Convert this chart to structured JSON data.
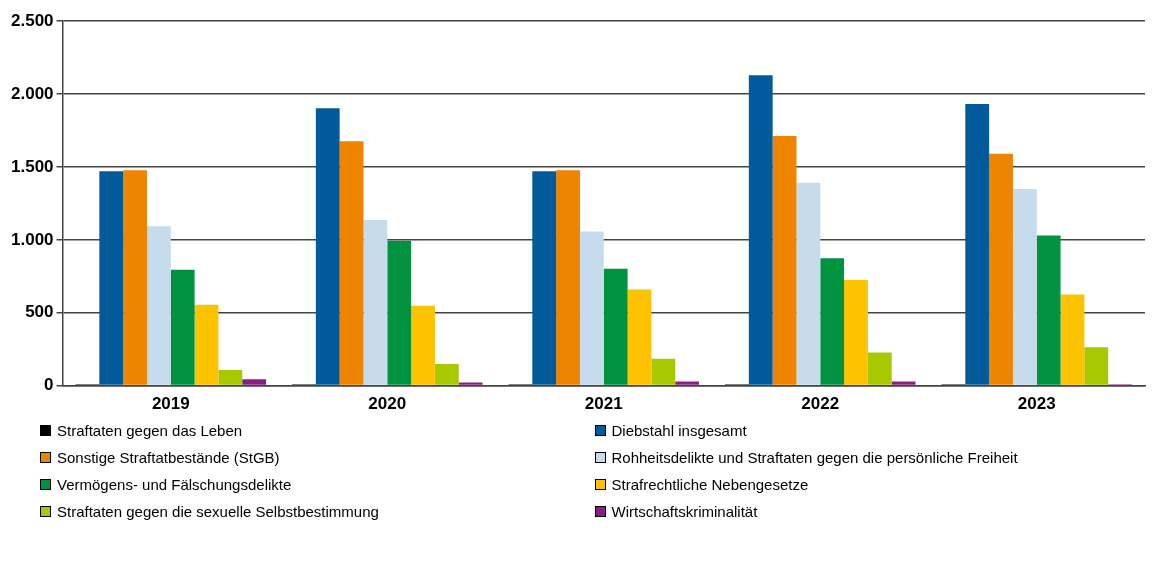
{
  "chart_data": {
    "type": "bar",
    "categories": [
      "2019",
      "2020",
      "2021",
      "2022",
      "2023"
    ],
    "series": [
      {
        "name": "Straftaten gegen das Leben",
        "color": "#000000",
        "values": [
          10,
          10,
          10,
          10,
          10
        ]
      },
      {
        "name": "Diebstahl insgesamt",
        "color": "#005a9c",
        "values": [
          1470,
          1903,
          1470,
          2130,
          1932
        ]
      },
      {
        "name": "Sonstige Straftatbestände (StGB)",
        "color": "#ee8400",
        "values": [
          1477,
          1676,
          1477,
          1712,
          1591
        ]
      },
      {
        "name": "Rohheitsdelikte und Straftaten gegen die persönliche Freiheit",
        "color": "#c6dcec",
        "values": [
          1094,
          1136,
          1058,
          1392,
          1349
        ]
      },
      {
        "name": "Vermögens- und Fälschungsdelikte",
        "color": "#00923f",
        "values": [
          795,
          994,
          802,
          873,
          1030
        ]
      },
      {
        "name": "Strafrechtliche Nebengesetze",
        "color": "#fdc300",
        "values": [
          554,
          547,
          660,
          724,
          625
        ]
      },
      {
        "name": "Straftaten gegen die sexuelle Selbstbestimmung",
        "color": "#a8c800",
        "values": [
          107,
          149,
          185,
          227,
          263
        ]
      },
      {
        "name": "Wirtschaftskriminalität",
        "color": "#8b1e82",
        "values": [
          43,
          21,
          28,
          28,
          10
        ]
      }
    ],
    "ylim": [
      0,
      2500
    ],
    "yticks": [
      {
        "value": 0,
        "label": "0"
      },
      {
        "value": 500,
        "label": "500"
      },
      {
        "value": 1000,
        "label": "1.000"
      },
      {
        "value": 1500,
        "label": "1.500"
      },
      {
        "value": 2000,
        "label": "2.000"
      },
      {
        "value": 2500,
        "label": "2.500"
      }
    ],
    "grid": "y",
    "legend": "bottom"
  }
}
